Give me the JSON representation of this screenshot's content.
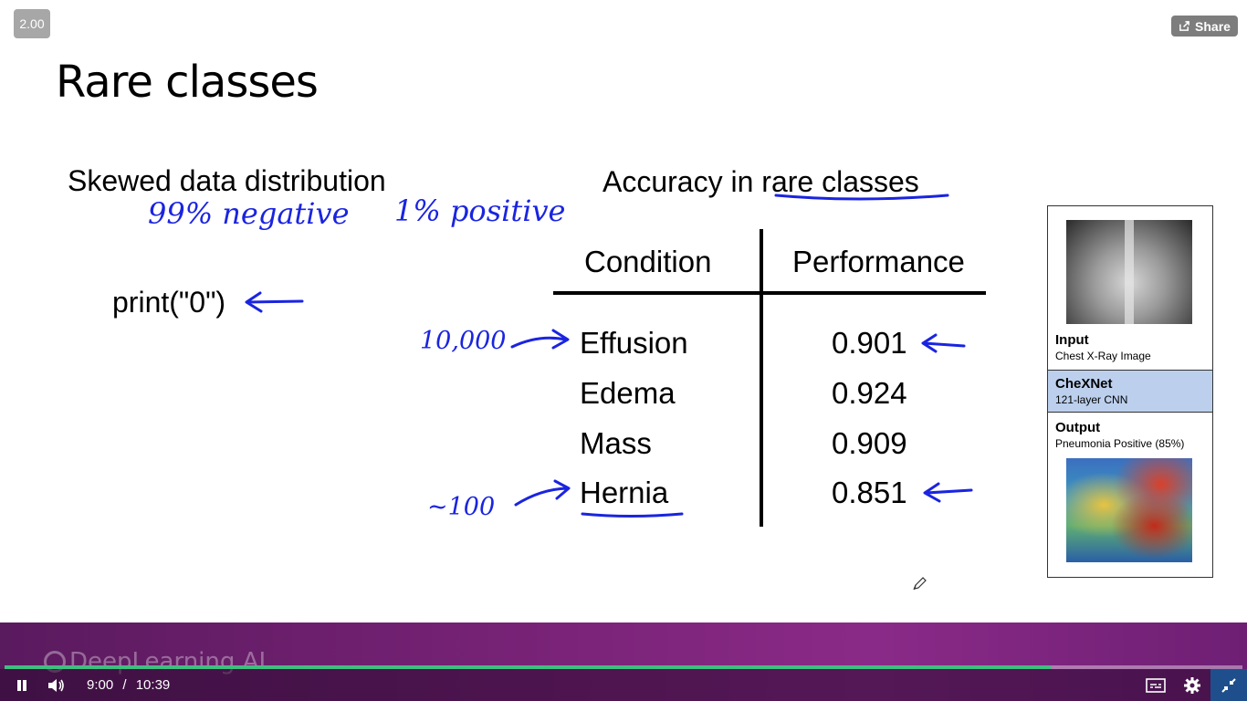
{
  "player": {
    "speed_badge": "2.00",
    "share_label": "Share",
    "current_time": "9:00",
    "separator": "/",
    "duration": "10:39",
    "watermark": "DeepLearning.AI",
    "progress_fraction": 0.845
  },
  "slide": {
    "title": "Rare classes",
    "left_heading": "Skewed data distribution",
    "code_text": "print(\"0\")",
    "right_heading_prefix": "Accuracy in ",
    "right_heading_emphasis": "rare classes",
    "table": {
      "headers": [
        "Condition",
        "Performance"
      ],
      "rows": [
        {
          "condition": "Effusion",
          "performance": "0.901"
        },
        {
          "condition": "Edema",
          "performance": "0.924"
        },
        {
          "condition": "Mass",
          "performance": "0.909"
        },
        {
          "condition": "Hernia",
          "performance": "0.851"
        }
      ]
    },
    "annotations": {
      "negative_note": "99% negative",
      "positive_note": "1% positive",
      "effusion_count": "10,000",
      "hernia_count": "~100"
    },
    "model_card": {
      "input_label": "Input",
      "input_sub": "Chest X-Ray Image",
      "model_label": "CheXNet",
      "model_sub": "121-layer CNN",
      "output_label": "Output",
      "output_sub": "Pneumonia Positive (85%)"
    }
  },
  "colors": {
    "ink": "#1a24e0",
    "progress": "#3fbf7f",
    "player_bg": "#7a2378",
    "model_highlight": "#bcd0ee"
  },
  "icons": [
    "share-icon",
    "pause-icon",
    "volume-icon",
    "captions-icon",
    "settings-icon",
    "exit-fullscreen-icon",
    "pen-cursor-icon"
  ]
}
